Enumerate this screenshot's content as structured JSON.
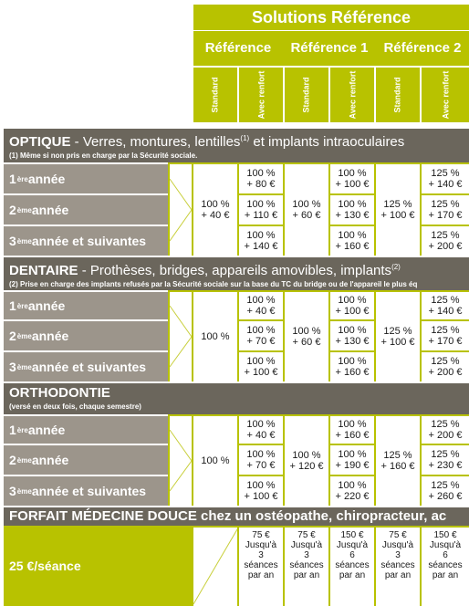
{
  "header": {
    "title": "Solutions Référence",
    "refs": [
      "Référence",
      "Référence 1",
      "Référence 2"
    ],
    "sub": [
      "Standard",
      "Avec renfort",
      "Standard",
      "Avec renfort",
      "Standard",
      "Avec renfort"
    ]
  },
  "optique": {
    "title_bold": "OPTIQUE",
    "title_rest": " - Verres, montures, lentilles",
    "title_sup": "(1)",
    "title_end": " et implants intraoculaires",
    "note": "(1) Même si non pris en charge par la Sécurité sociale.",
    "rows": [
      {
        "n": "1",
        "sup": "ère",
        "rest": " année"
      },
      {
        "n": "2",
        "sup": "ème",
        "rest": " année"
      },
      {
        "n": "3",
        "sup": "ème",
        "rest": " année et suivantes"
      }
    ],
    "std": [
      "100 %\n+ 40 €",
      "100 %\n+ 60 €",
      "125 %\n+ 100 €"
    ],
    "renfort": [
      [
        "100 %\n+ 80 €",
        "100 %\n+ 110 €",
        "100 %\n+ 140 €"
      ],
      [
        "100 %\n+ 100 €",
        "100 %\n+ 130 €",
        "100 %\n+ 160 €"
      ],
      [
        "125 %\n+ 140 €",
        "125 %\n+ 170 €",
        "125 %\n+ 200 €"
      ]
    ]
  },
  "dentaire": {
    "title_bold": "DENTAIRE",
    "title_rest": " - Prothèses, bridges, appareils amovibles, implants",
    "title_sup": "(2)",
    "note": "(2) Prise en charge des implants refusés par la Sécurité sociale sur la base du TC du bridge ou de l'appareil le plus éq",
    "rows": [
      {
        "n": "1",
        "sup": "ère",
        "rest": " année"
      },
      {
        "n": "2",
        "sup": "ème",
        "rest": " année"
      },
      {
        "n": "3",
        "sup": "ème",
        "rest": " année et suivantes"
      }
    ],
    "std": [
      "100 %",
      "100 %\n+ 60 €",
      "125 %\n+ 100 €"
    ],
    "renfort": [
      [
        "100 %\n+ 40 €",
        "100 %\n+ 70 €",
        "100 %\n+ 100 €"
      ],
      [
        "100 %\n+ 100 €",
        "100 %\n+ 130 €",
        "100 %\n+ 160 €"
      ],
      [
        "125 %\n+ 140 €",
        "125 %\n+ 170 €",
        "125 %\n+ 200 €"
      ]
    ]
  },
  "orthodontie": {
    "title_bold": "ORTHODONTIE",
    "note": "(versé en deux fois, chaque semestre)",
    "rows": [
      {
        "n": "1",
        "sup": "ère",
        "rest": " année"
      },
      {
        "n": "2",
        "sup": "ème",
        "rest": " année"
      },
      {
        "n": "3",
        "sup": "ème",
        "rest": " année et suivantes"
      }
    ],
    "std": [
      "100 %",
      "100 %\n+ 120 €",
      "125 %\n+ 160 €"
    ],
    "renfort": [
      [
        "100 %\n+ 40 €",
        "100 %\n+ 70 €",
        "100 %\n+ 100 €"
      ],
      [
        "100 %\n+ 160 €",
        "100 %\n+ 190 €",
        "100 %\n+ 220 €"
      ],
      [
        "125 %\n+ 200 €",
        "125 %\n+ 230 €",
        "125 %\n+ 260 €"
      ]
    ]
  },
  "forfait": {
    "title_bold": "FORFAIT MÉDECINE DOUCE",
    "title_rest": " chez un ostéopathe, chiropracteur, ac",
    "label": "25 €/séance",
    "cells": [
      "75 €\nJusqu'à\n3\nséances\npar an",
      "75 €\nJusqu'à\n3\nséances\npar an",
      "150 €\nJusqu'à\n6\nséances\npar an",
      "75 €\nJusqu'à\n3\nséances\npar an",
      "150 €\nJusqu'à\n6\nséances\npar an"
    ]
  }
}
